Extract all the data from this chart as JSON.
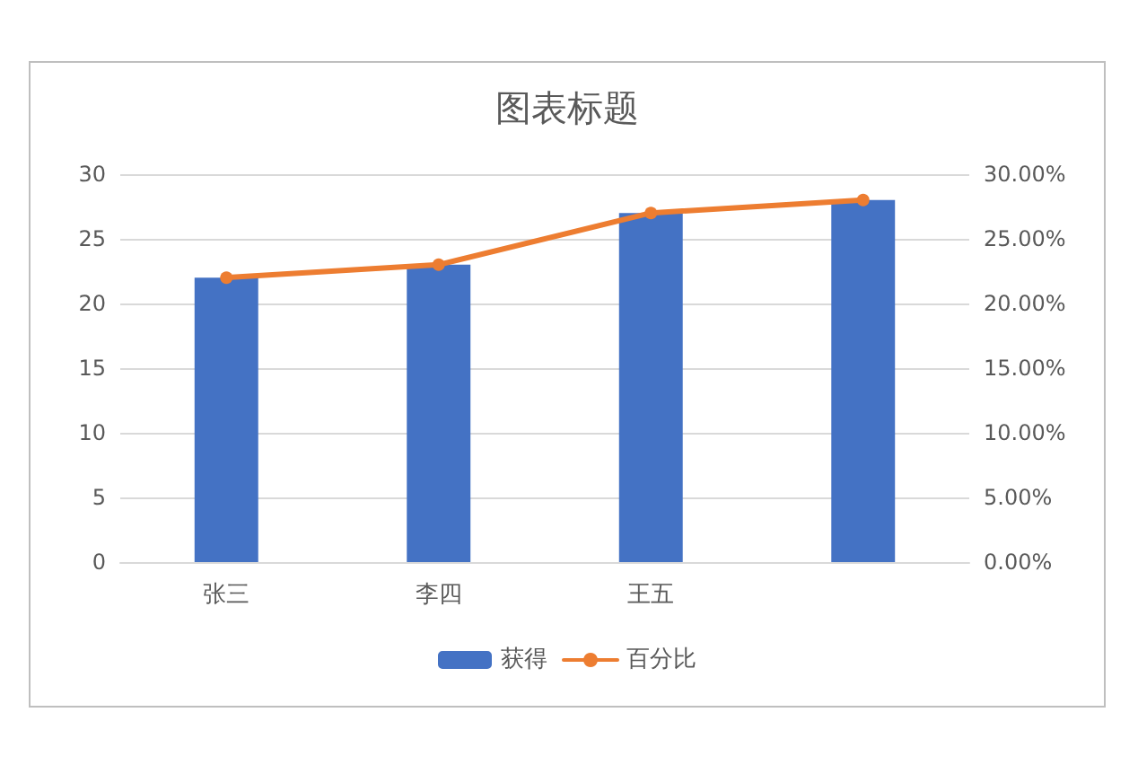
{
  "chart_data": {
    "type": "bar",
    "title": "图表标题",
    "categories": [
      "张三",
      "李四",
      "王五",
      null
    ],
    "series": [
      {
        "name": "获得",
        "color": "#4472c4",
        "values": [
          22,
          23,
          27,
          28
        ]
      },
      {
        "name": "百分比",
        "type": "line",
        "axis": "y2",
        "color": "#ed7d31",
        "values": [
          22,
          23,
          27,
          28
        ],
        "marker": "circle",
        "line_style": "solid"
      }
    ],
    "ylim": [
      0,
      30
    ],
    "yticks": [
      0,
      5,
      10,
      15,
      20,
      25,
      30
    ],
    "y2lim": [
      0,
      30
    ],
    "y2ticks": [
      {
        "value": 0,
        "label": "0.00%"
      },
      {
        "value": 5,
        "label": "5.00%"
      },
      {
        "value": 10,
        "label": "10.00%"
      },
      {
        "value": 15,
        "label": "15.00%"
      },
      {
        "value": 20,
        "label": "20.00%"
      },
      {
        "value": 25,
        "label": "25.00%"
      },
      {
        "value": 30,
        "label": "30.00%"
      }
    ],
    "grid": "y",
    "legend": "bottom"
  }
}
